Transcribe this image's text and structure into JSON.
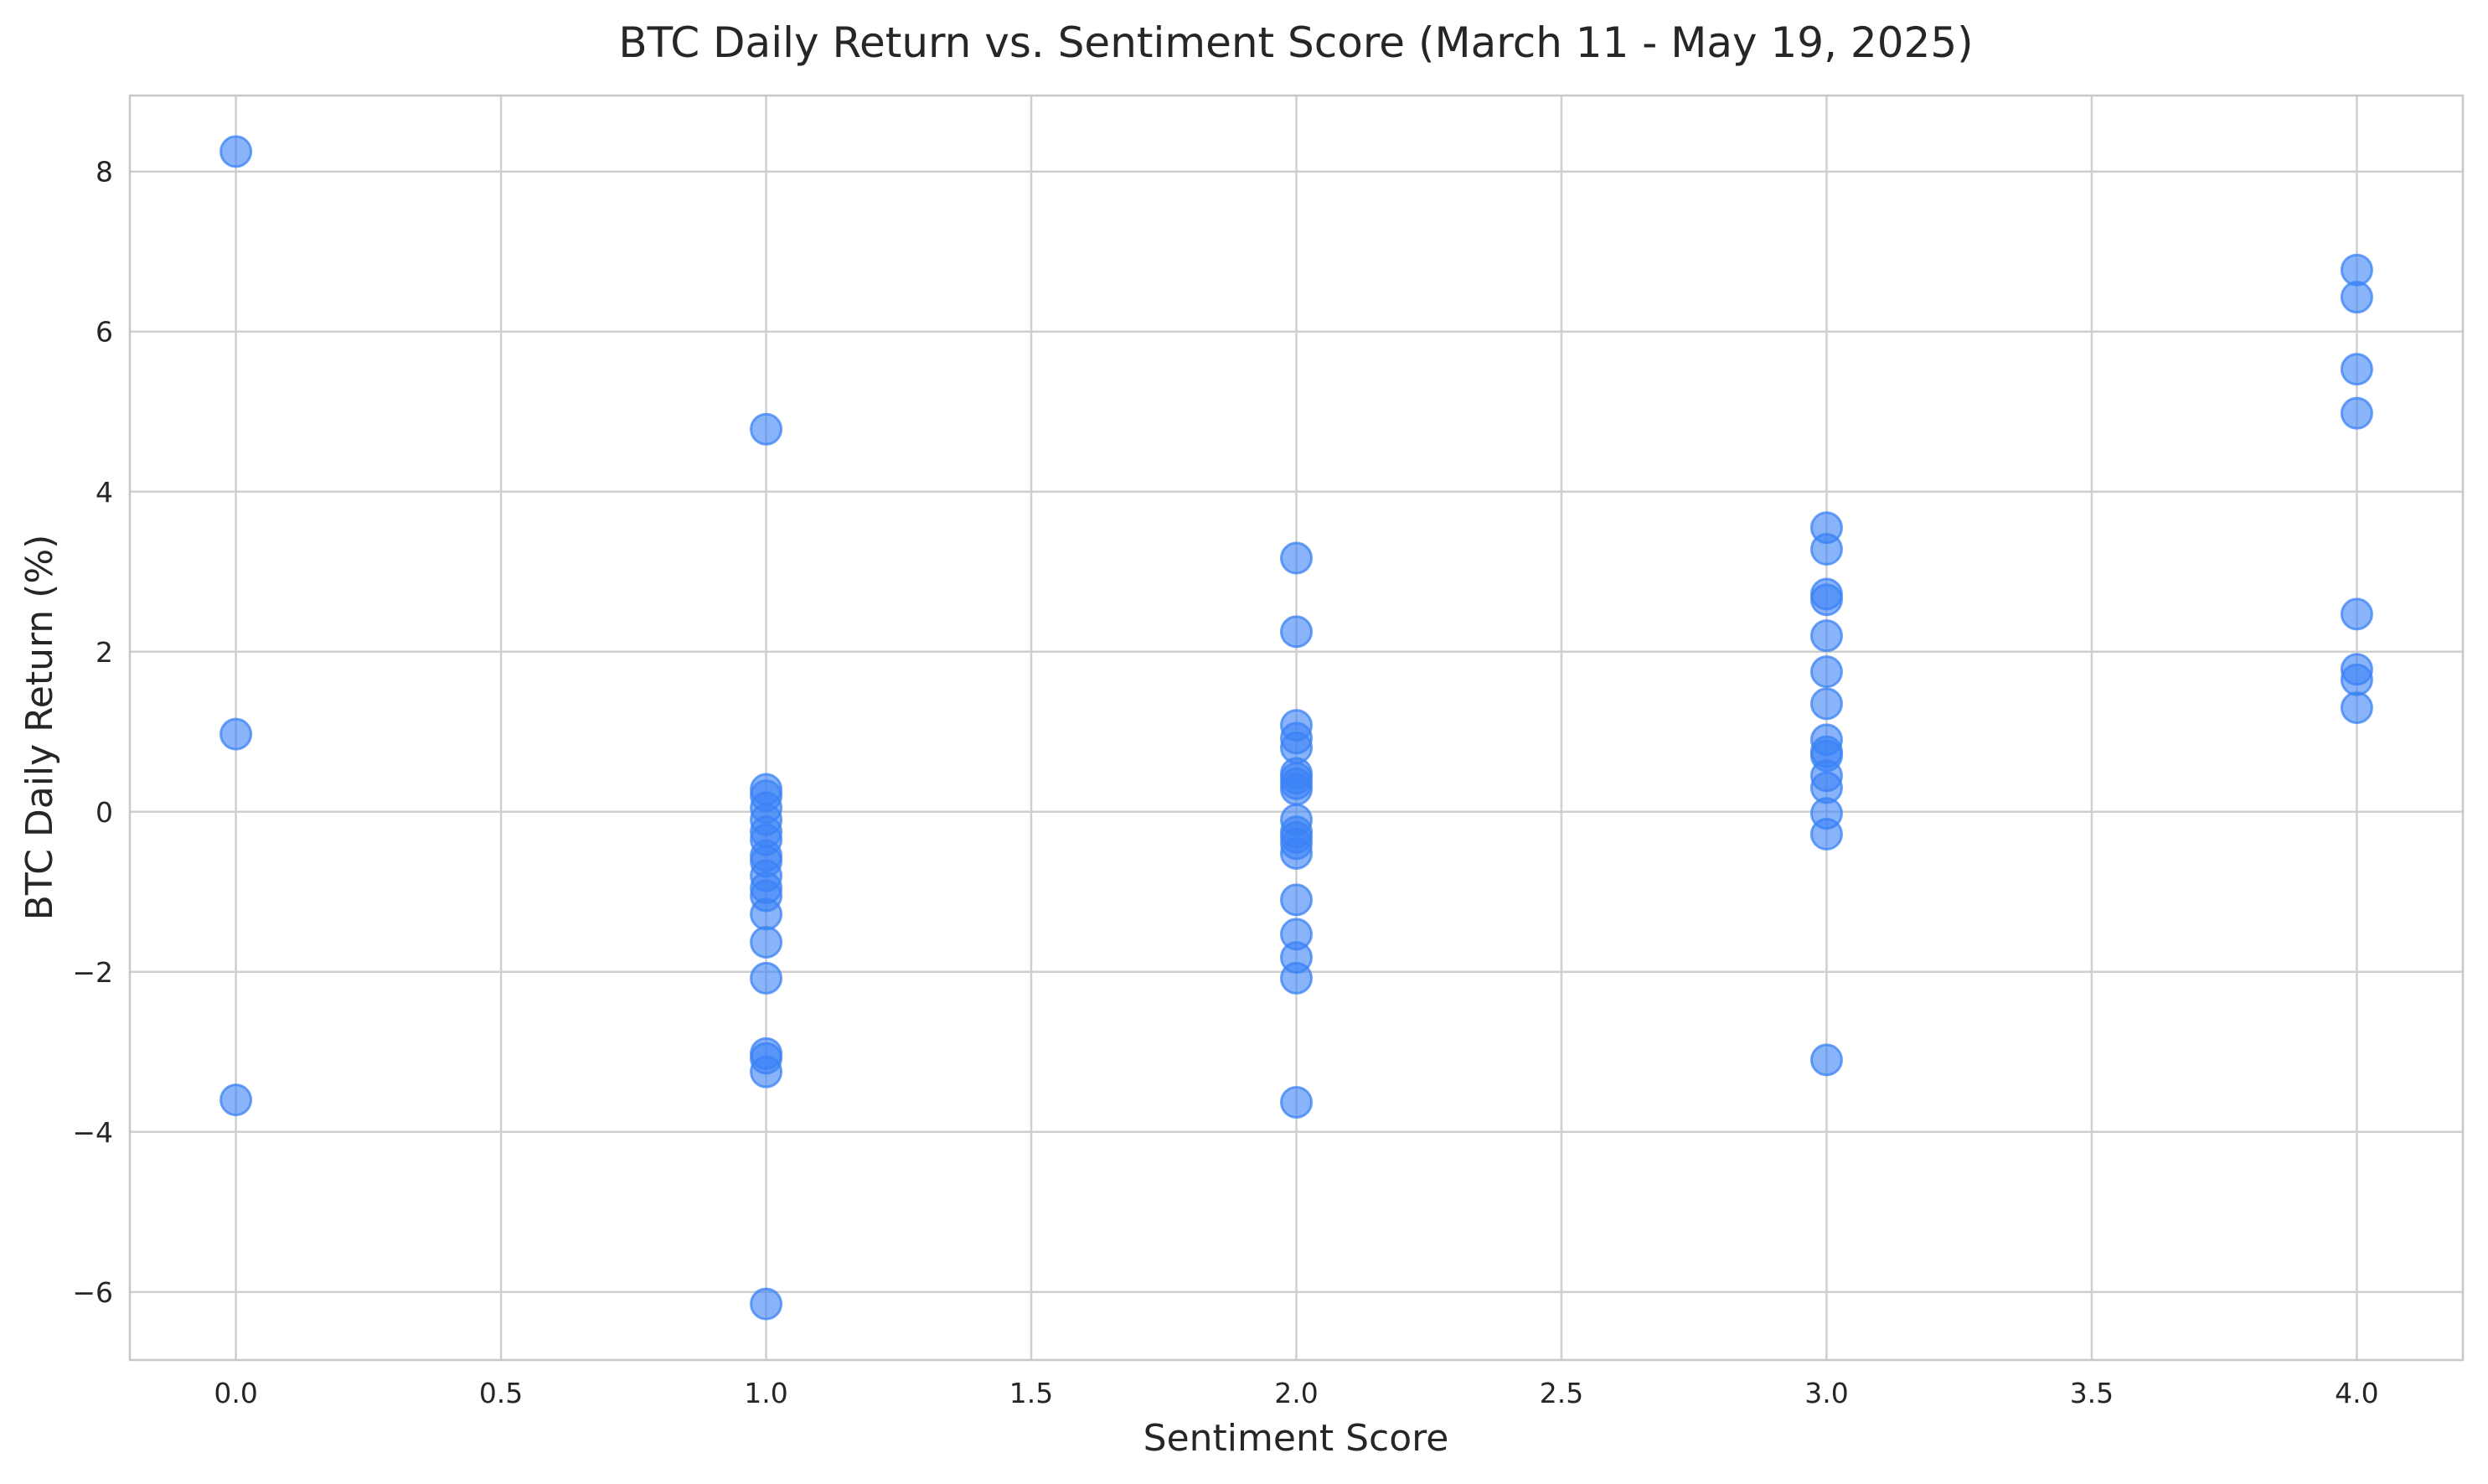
{
  "chart_data": {
    "type": "scatter",
    "title": "BTC Daily Return vs. Sentiment Score (March 11 - May 19, 2025)",
    "xlabel": "Sentiment Score",
    "ylabel": "BTC Daily Return (%)",
    "xlim": [
      -0.2,
      4.2
    ],
    "ylim": [
      -6.85,
      8.95
    ],
    "xticks": [
      0.0,
      0.5,
      1.0,
      1.5,
      2.0,
      2.5,
      3.0,
      3.5,
      4.0
    ],
    "xtick_labels": [
      "0.0",
      "0.5",
      "1.0",
      "1.5",
      "2.0",
      "2.5",
      "3.0",
      "3.5",
      "4.0"
    ],
    "yticks": [
      -6,
      -4,
      -2,
      0,
      2,
      4,
      6,
      8
    ],
    "ytick_labels": [
      "−6",
      "−4",
      "−2",
      "0",
      "2",
      "4",
      "6",
      "8"
    ],
    "grid": true,
    "legend": "none",
    "point_color": "#3b82f6",
    "series": [
      {
        "points": [
          [
            0,
            8.25
          ],
          [
            0,
            0.97
          ],
          [
            0,
            -3.6
          ],
          [
            1,
            4.78
          ],
          [
            1,
            0.28
          ],
          [
            1,
            0.2
          ],
          [
            1,
            0.05
          ],
          [
            1,
            -0.1
          ],
          [
            1,
            -0.25
          ],
          [
            1,
            -0.35
          ],
          [
            1,
            -0.55
          ],
          [
            1,
            -0.62
          ],
          [
            1,
            -0.8
          ],
          [
            1,
            -0.95
          ],
          [
            1,
            -1.05
          ],
          [
            1,
            -1.28
          ],
          [
            1,
            -1.63
          ],
          [
            1,
            -2.08
          ],
          [
            1,
            -3.02
          ],
          [
            1,
            -3.08
          ],
          [
            1,
            -3.25
          ],
          [
            1,
            -6.15
          ],
          [
            2,
            3.17
          ],
          [
            2,
            2.25
          ],
          [
            2,
            1.08
          ],
          [
            2,
            0.92
          ],
          [
            2,
            0.8
          ],
          [
            2,
            0.48
          ],
          [
            2,
            0.42
          ],
          [
            2,
            0.35
          ],
          [
            2,
            0.28
          ],
          [
            2,
            -0.1
          ],
          [
            2,
            -0.25
          ],
          [
            2,
            -0.32
          ],
          [
            2,
            -0.4
          ],
          [
            2,
            -0.52
          ],
          [
            2,
            -1.1
          ],
          [
            2,
            -1.53
          ],
          [
            2,
            -1.82
          ],
          [
            2,
            -2.08
          ],
          [
            2,
            -3.63
          ],
          [
            3,
            3.55
          ],
          [
            3,
            3.28
          ],
          [
            3,
            2.72
          ],
          [
            3,
            2.65
          ],
          [
            3,
            2.2
          ],
          [
            3,
            1.75
          ],
          [
            3,
            1.35
          ],
          [
            3,
            0.9
          ],
          [
            3,
            0.75
          ],
          [
            3,
            0.7
          ],
          [
            3,
            0.45
          ],
          [
            3,
            0.3
          ],
          [
            3,
            -0.02
          ],
          [
            3,
            -0.28
          ],
          [
            3,
            -3.1
          ],
          [
            4,
            6.77
          ],
          [
            4,
            6.43
          ],
          [
            4,
            5.53
          ],
          [
            4,
            4.98
          ],
          [
            4,
            2.47
          ],
          [
            4,
            1.78
          ],
          [
            4,
            1.65
          ],
          [
            4,
            1.3
          ]
        ]
      }
    ]
  }
}
